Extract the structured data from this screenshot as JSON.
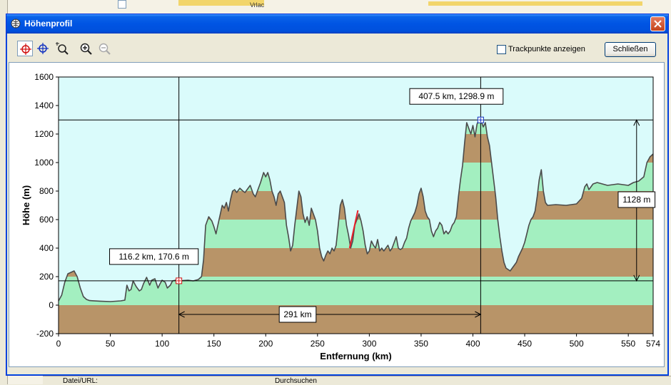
{
  "window": {
    "title": "Höhenprofil",
    "close_label": "Schließen",
    "trackpoints_label": "Trackpunkte anzeigen",
    "trackpoints_checked": false
  },
  "tools": [
    {
      "name": "crosshair-red-icon",
      "active": true
    },
    {
      "name": "crosshair-blue-icon",
      "active": false
    },
    {
      "name": "zoom-select-icon",
      "active": false
    },
    {
      "name": "zoom-in-icon",
      "active": false
    },
    {
      "name": "zoom-out-icon",
      "active": false
    }
  ],
  "background": {
    "place_label": "Vrlac",
    "bottom_items": [
      "Datei/URL:",
      "Durchsuchen"
    ]
  },
  "chart_data": {
    "type": "area",
    "xlabel": "Entfernung   (km)",
    "ylabel": "Höhe (m)",
    "xlim": [
      0,
      574
    ],
    "ylim": [
      -200,
      1600
    ],
    "xticks": [
      0,
      50,
      100,
      150,
      200,
      250,
      300,
      350,
      400,
      450,
      500,
      550,
      574
    ],
    "yticks": [
      -200,
      0,
      200,
      400,
      600,
      800,
      1000,
      1200,
      1400,
      1600
    ],
    "colors": {
      "plot_bg": "#dafbfb",
      "band_dark": "#b89468",
      "band_light": "#a3efc0",
      "line": "#4a4a4a",
      "highlight": "#e8202a"
    },
    "profile": [
      [
        0,
        30
      ],
      [
        3,
        70
      ],
      [
        6,
        160
      ],
      [
        9,
        220
      ],
      [
        12,
        230
      ],
      [
        15,
        240
      ],
      [
        18,
        200
      ],
      [
        21,
        120
      ],
      [
        24,
        60
      ],
      [
        27,
        40
      ],
      [
        30,
        32
      ],
      [
        40,
        28
      ],
      [
        50,
        25
      ],
      [
        60,
        30
      ],
      [
        64,
        35
      ],
      [
        66,
        140
      ],
      [
        68,
        100
      ],
      [
        70,
        110
      ],
      [
        72,
        170
      ],
      [
        75,
        130
      ],
      [
        78,
        100
      ],
      [
        80,
        110
      ],
      [
        82,
        150
      ],
      [
        85,
        195
      ],
      [
        88,
        140
      ],
      [
        90,
        175
      ],
      [
        93,
        185
      ],
      [
        96,
        120
      ],
      [
        98,
        150
      ],
      [
        100,
        175
      ],
      [
        103,
        160
      ],
      [
        105,
        120
      ],
      [
        108,
        140
      ],
      [
        110,
        170
      ],
      [
        113,
        175
      ],
      [
        116,
        171
      ],
      [
        120,
        172
      ],
      [
        125,
        175
      ],
      [
        130,
        170
      ],
      [
        135,
        180
      ],
      [
        138,
        200
      ],
      [
        140,
        320
      ],
      [
        142,
        560
      ],
      [
        145,
        620
      ],
      [
        148,
        590
      ],
      [
        150,
        550
      ],
      [
        152,
        500
      ],
      [
        155,
        600
      ],
      [
        158,
        700
      ],
      [
        160,
        680
      ],
      [
        162,
        720
      ],
      [
        164,
        660
      ],
      [
        166,
        740
      ],
      [
        168,
        800
      ],
      [
        170,
        810
      ],
      [
        172,
        790
      ],
      [
        175,
        820
      ],
      [
        178,
        800
      ],
      [
        180,
        790
      ],
      [
        182,
        810
      ],
      [
        185,
        840
      ],
      [
        188,
        780
      ],
      [
        190,
        760
      ],
      [
        192,
        800
      ],
      [
        195,
        860
      ],
      [
        198,
        930
      ],
      [
        200,
        900
      ],
      [
        202,
        930
      ],
      [
        204,
        880
      ],
      [
        206,
        800
      ],
      [
        208,
        760
      ],
      [
        210,
        700
      ],
      [
        212,
        780
      ],
      [
        214,
        800
      ],
      [
        216,
        760
      ],
      [
        218,
        720
      ],
      [
        220,
        560
      ],
      [
        222,
        480
      ],
      [
        224,
        380
      ],
      [
        226,
        420
      ],
      [
        228,
        560
      ],
      [
        230,
        680
      ],
      [
        232,
        800
      ],
      [
        234,
        760
      ],
      [
        236,
        640
      ],
      [
        238,
        580
      ],
      [
        240,
        620
      ],
      [
        242,
        560
      ],
      [
        244,
        680
      ],
      [
        246,
        640
      ],
      [
        248,
        600
      ],
      [
        250,
        520
      ],
      [
        252,
        400
      ],
      [
        254,
        340
      ],
      [
        256,
        310
      ],
      [
        258,
        350
      ],
      [
        260,
        380
      ],
      [
        262,
        360
      ],
      [
        264,
        400
      ],
      [
        266,
        380
      ],
      [
        268,
        420
      ],
      [
        270,
        560
      ],
      [
        272,
        700
      ],
      [
        274,
        740
      ],
      [
        276,
        680
      ],
      [
        278,
        560
      ],
      [
        280,
        490
      ],
      [
        282,
        400
      ],
      [
        284,
        450
      ],
      [
        286,
        560
      ],
      [
        288,
        600
      ],
      [
        290,
        640
      ],
      [
        292,
        590
      ],
      [
        294,
        520
      ],
      [
        296,
        420
      ],
      [
        298,
        360
      ],
      [
        300,
        380
      ],
      [
        302,
        450
      ],
      [
        304,
        420
      ],
      [
        306,
        400
      ],
      [
        308,
        460
      ],
      [
        310,
        380
      ],
      [
        312,
        400
      ],
      [
        314,
        380
      ],
      [
        316,
        400
      ],
      [
        318,
        420
      ],
      [
        320,
        380
      ],
      [
        322,
        400
      ],
      [
        324,
        440
      ],
      [
        326,
        480
      ],
      [
        328,
        400
      ],
      [
        330,
        390
      ],
      [
        332,
        400
      ],
      [
        334,
        440
      ],
      [
        336,
        470
      ],
      [
        338,
        540
      ],
      [
        340,
        590
      ],
      [
        342,
        620
      ],
      [
        344,
        650
      ],
      [
        346,
        700
      ],
      [
        348,
        780
      ],
      [
        350,
        820
      ],
      [
        352,
        760
      ],
      [
        354,
        660
      ],
      [
        356,
        620
      ],
      [
        358,
        600
      ],
      [
        360,
        520
      ],
      [
        362,
        480
      ],
      [
        364,
        520
      ],
      [
        366,
        540
      ],
      [
        368,
        580
      ],
      [
        370,
        560
      ],
      [
        372,
        500
      ],
      [
        374,
        520
      ],
      [
        376,
        500
      ],
      [
        378,
        520
      ],
      [
        380,
        560
      ],
      [
        382,
        580
      ],
      [
        384,
        620
      ],
      [
        386,
        760
      ],
      [
        388,
        880
      ],
      [
        390,
        980
      ],
      [
        392,
        1140
      ],
      [
        394,
        1280
      ],
      [
        396,
        1240
      ],
      [
        398,
        1200
      ],
      [
        400,
        1260
      ],
      [
        402,
        1180
      ],
      [
        404,
        1270
      ],
      [
        406,
        1300
      ],
      [
        407.5,
        1298.9
      ],
      [
        410,
        1250
      ],
      [
        412,
        1280
      ],
      [
        414,
        1180
      ],
      [
        416,
        1120
      ],
      [
        418,
        1000
      ],
      [
        420,
        880
      ],
      [
        422,
        760
      ],
      [
        424,
        600
      ],
      [
        426,
        480
      ],
      [
        428,
        380
      ],
      [
        430,
        300
      ],
      [
        432,
        260
      ],
      [
        434,
        250
      ],
      [
        436,
        240
      ],
      [
        438,
        260
      ],
      [
        440,
        280
      ],
      [
        442,
        300
      ],
      [
        444,
        340
      ],
      [
        446,
        370
      ],
      [
        448,
        400
      ],
      [
        450,
        440
      ],
      [
        452,
        500
      ],
      [
        454,
        560
      ],
      [
        456,
        600
      ],
      [
        458,
        620
      ],
      [
        460,
        660
      ],
      [
        462,
        760
      ],
      [
        464,
        880
      ],
      [
        466,
        950
      ],
      [
        468,
        800
      ],
      [
        470,
        720
      ],
      [
        472,
        700
      ],
      [
        480,
        705
      ],
      [
        490,
        700
      ],
      [
        500,
        710
      ],
      [
        505,
        750
      ],
      [
        508,
        830
      ],
      [
        510,
        850
      ],
      [
        512,
        810
      ],
      [
        514,
        830
      ],
      [
        516,
        850
      ],
      [
        520,
        860
      ],
      [
        530,
        840
      ],
      [
        540,
        850
      ],
      [
        550,
        840
      ],
      [
        555,
        860
      ],
      [
        560,
        870
      ],
      [
        565,
        900
      ],
      [
        568,
        1000
      ],
      [
        571,
        1040
      ],
      [
        574,
        1060
      ]
    ],
    "highlight_segment": [
      [
        281,
        400
      ],
      [
        289,
        665
      ]
    ],
    "cursor_a": {
      "km": 116.2,
      "elev": 170.6,
      "label": "116.2 km, 170.6 m"
    },
    "cursor_b": {
      "km": 407.5,
      "elev": 1298.9,
      "label": "407.5 km, 1298.9 m"
    },
    "distance_label": "291 km",
    "elevation_diff_label": "1128 m"
  }
}
